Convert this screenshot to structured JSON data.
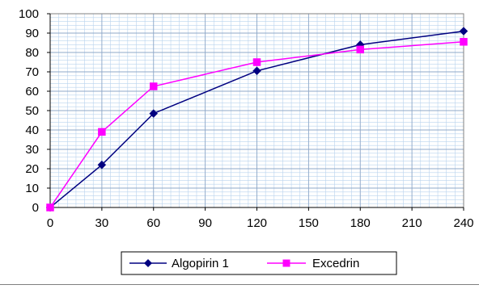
{
  "chart_data": {
    "type": "line",
    "x": [
      0,
      30,
      60,
      120,
      180,
      240
    ],
    "xticks": [
      0,
      30,
      60,
      90,
      120,
      150,
      180,
      210,
      240
    ],
    "yticks": [
      0,
      10,
      20,
      30,
      40,
      50,
      60,
      70,
      80,
      90,
      100
    ],
    "xlim": [
      0,
      240
    ],
    "ylim": [
      0,
      100
    ],
    "grid": true,
    "legend_position": "bottom",
    "series": [
      {
        "name": "Algopirin 1",
        "values": [
          0,
          22,
          48.5,
          70.5,
          84,
          91
        ],
        "color": "#000080",
        "marker": "diamond"
      },
      {
        "name": "Excedrin",
        "values": [
          0,
          39,
          62.5,
          75,
          81.5,
          85.5
        ],
        "color": "#ff00ff",
        "marker": "square"
      }
    ]
  }
}
